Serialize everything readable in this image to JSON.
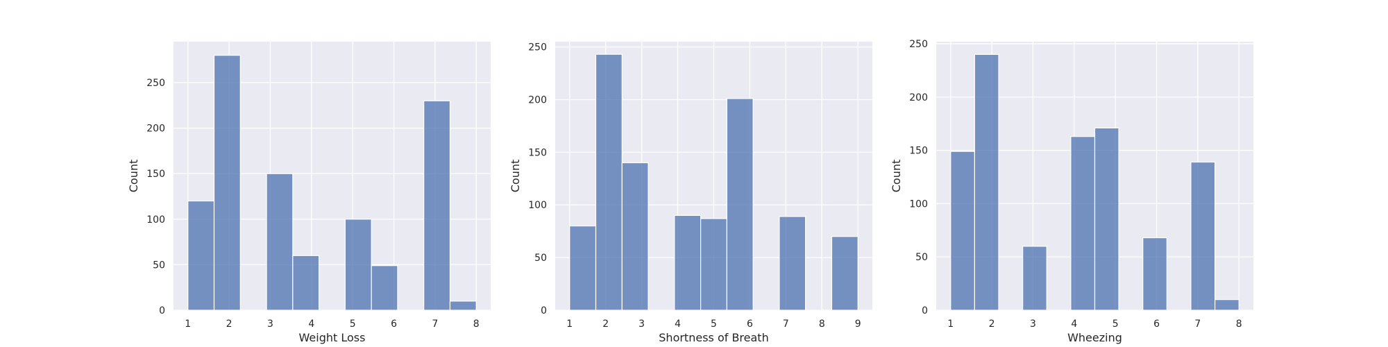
{
  "chart_data": [
    {
      "type": "bar",
      "xlabel": "Weight Loss",
      "ylabel": "Count",
      "xlim": [
        0.65,
        8.35
      ],
      "ylim": [
        0,
        295
      ],
      "xticks": [
        1,
        2,
        3,
        4,
        5,
        6,
        7,
        8
      ],
      "yticks": [
        0,
        50,
        100,
        150,
        200,
        250
      ],
      "bin_edges": [
        1.0,
        1.636,
        2.273,
        2.909,
        3.545,
        4.182,
        4.818,
        5.455,
        6.091,
        6.727,
        7.364,
        8.0
      ],
      "values": [
        120,
        280,
        0,
        150,
        60,
        0,
        100,
        49,
        0,
        230,
        10
      ],
      "grid": true,
      "legend": "none"
    },
    {
      "type": "bar",
      "xlabel": "Shortness of Breath",
      "ylabel": "Count",
      "xlim": [
        0.6,
        9.4
      ],
      "ylim": [
        0,
        255
      ],
      "xticks": [
        1,
        2,
        3,
        4,
        5,
        6,
        7,
        8,
        9
      ],
      "yticks": [
        0,
        50,
        100,
        150,
        200,
        250
      ],
      "bin_edges": [
        1.0,
        1.727,
        2.455,
        3.182,
        3.909,
        4.636,
        5.364,
        6.091,
        6.818,
        7.545,
        8.273,
        9.0
      ],
      "values": [
        80,
        243,
        140,
        0,
        90,
        87,
        201,
        0,
        89,
        0,
        70
      ],
      "grid": true,
      "legend": "none"
    },
    {
      "type": "bar",
      "xlabel": "Wheezing",
      "ylabel": "Count",
      "xlim": [
        0.65,
        8.35
      ],
      "ylim": [
        0,
        252
      ],
      "xticks": [
        1,
        2,
        3,
        4,
        5,
        6,
        7,
        8
      ],
      "yticks": [
        0,
        50,
        100,
        150,
        200,
        250
      ],
      "bin_edges": [
        1.0,
        1.583,
        2.167,
        2.75,
        3.333,
        3.917,
        4.5,
        5.083,
        5.667,
        6.25,
        6.833,
        7.417,
        8.0
      ],
      "values": [
        149,
        240,
        0,
        60,
        0,
        163,
        171,
        0,
        68,
        0,
        139,
        10
      ],
      "grid": true,
      "legend": "none"
    }
  ]
}
